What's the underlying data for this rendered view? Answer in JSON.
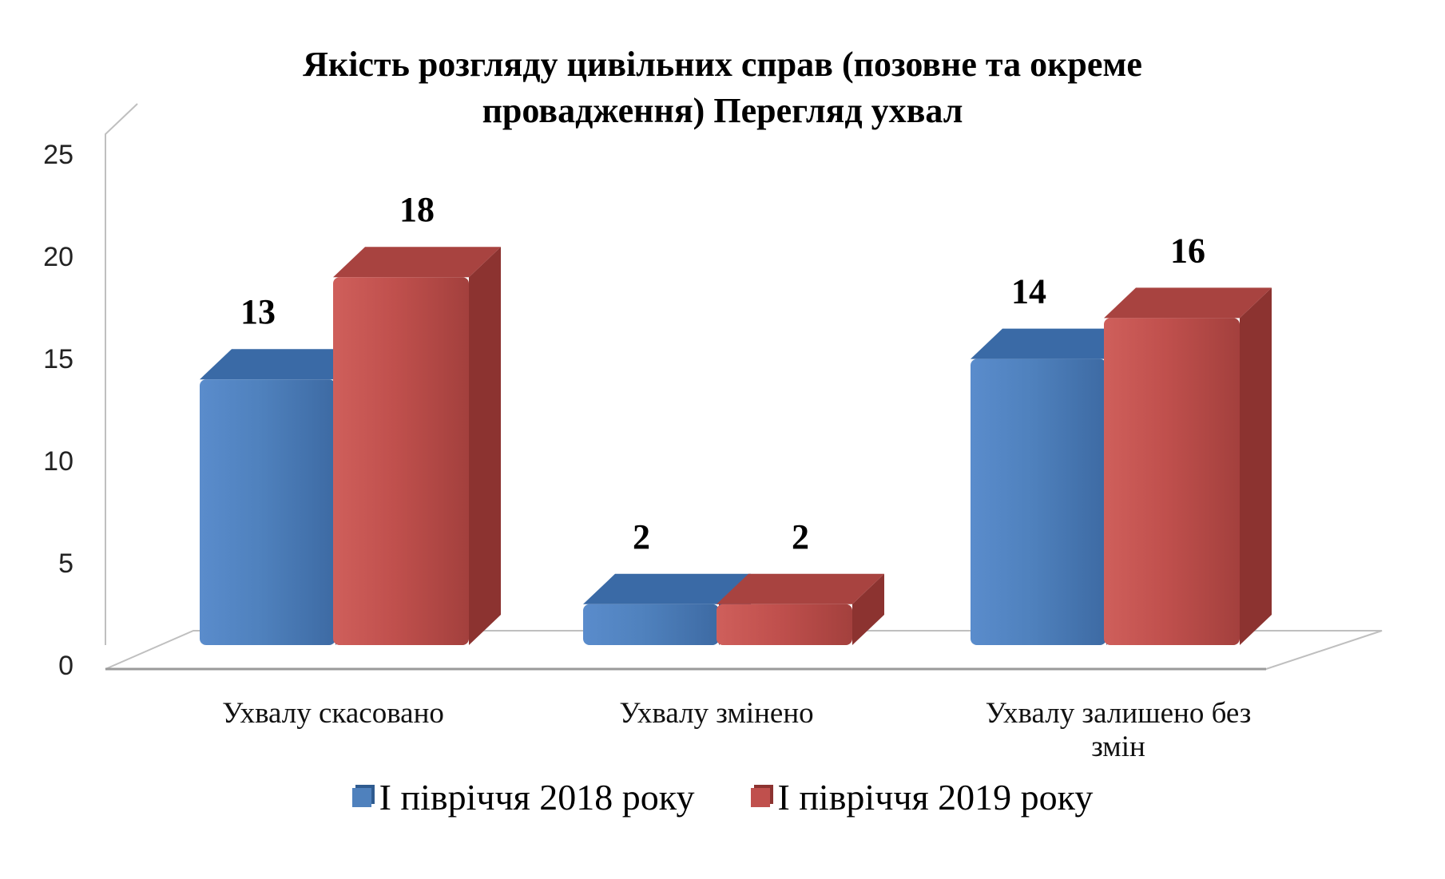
{
  "chart_data": {
    "type": "bar",
    "title_lines": [
      "Якість розгляду цивільних справ (позовне та окреме",
      "провадження) Перегляд ухвал"
    ],
    "categories": [
      [
        "Ухвалу скасовано"
      ],
      [
        "Ухвалу змінено"
      ],
      [
        "Ухвалу  залишено  без",
        "змін"
      ]
    ],
    "series": [
      {
        "name": "І півріччя 2018 року",
        "values": [
          13,
          2,
          14
        ],
        "color": "#4F81BD"
      },
      {
        "name": "І півріччя 2019 року",
        "values": [
          18,
          2,
          16
        ],
        "color": "#C0504D"
      }
    ],
    "ylim": [
      0,
      25
    ],
    "yticks": [
      0,
      5,
      10,
      15,
      20,
      25
    ],
    "grid": false,
    "legend_position": "bottom",
    "style": "3d-column"
  }
}
